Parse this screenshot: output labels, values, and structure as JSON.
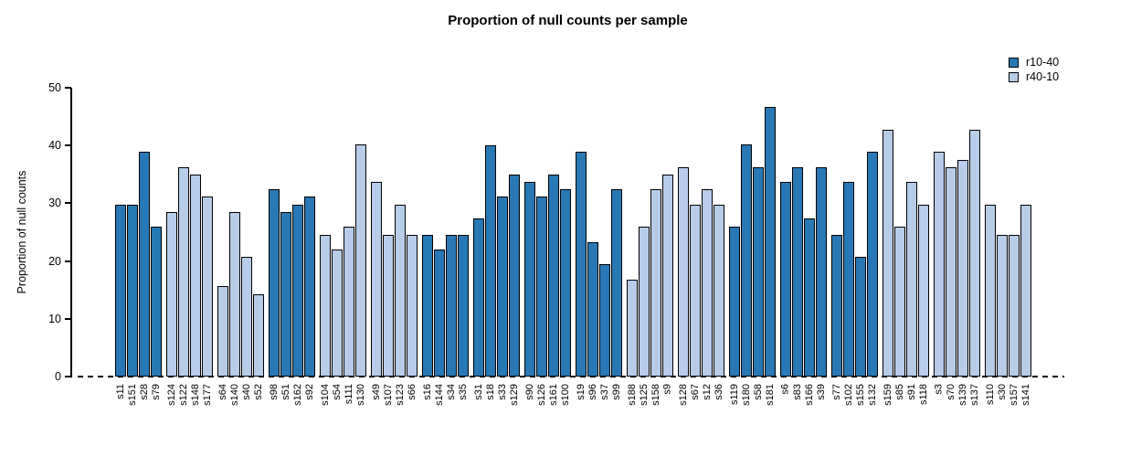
{
  "title": "Proportion of null counts per sample",
  "ylabel": "Proportion of null counts",
  "legend": [
    {
      "label": "r10-40",
      "color": "#2878b5"
    },
    {
      "label": "r40-10",
      "color": "#b7cce9"
    }
  ],
  "chart_data": {
    "type": "bar",
    "title": "Proportion of null counts per sample",
    "xlabel": "",
    "ylabel": "Proportion of null counts",
    "ylim": [
      0,
      50
    ],
    "yticks": [
      0,
      10,
      20,
      30,
      40,
      50
    ],
    "grid": false,
    "legend_position": "top-right",
    "group_size": 4,
    "series_colors": {
      "r10-40": "#2878b5",
      "r40-10": "#b7cce9"
    },
    "zero_line_style": "dashed",
    "bars": [
      {
        "label": "s11",
        "value": 29.8,
        "series": "r10-40"
      },
      {
        "label": "s151",
        "value": 29.8,
        "series": "r10-40"
      },
      {
        "label": "s28",
        "value": 38.9,
        "series": "r10-40"
      },
      {
        "label": "s79",
        "value": 26.0,
        "series": "r10-40"
      },
      {
        "label": "s124",
        "value": 28.5,
        "series": "r40-10"
      },
      {
        "label": "s122",
        "value": 36.3,
        "series": "r40-10"
      },
      {
        "label": "s148",
        "value": 34.9,
        "series": "r40-10"
      },
      {
        "label": "s177",
        "value": 31.2,
        "series": "r40-10"
      },
      {
        "label": "s64",
        "value": 15.6,
        "series": "r40-10"
      },
      {
        "label": "s140",
        "value": 28.5,
        "series": "r40-10"
      },
      {
        "label": "s40",
        "value": 20.8,
        "series": "r40-10"
      },
      {
        "label": "s52",
        "value": 14.3,
        "series": "r40-10"
      },
      {
        "label": "s98",
        "value": 32.4,
        "series": "r10-40"
      },
      {
        "label": "s51",
        "value": 28.5,
        "series": "r10-40"
      },
      {
        "label": "s162",
        "value": 29.8,
        "series": "r10-40"
      },
      {
        "label": "s92",
        "value": 31.2,
        "series": "r10-40"
      },
      {
        "label": "s104",
        "value": 24.5,
        "series": "r40-10"
      },
      {
        "label": "s54",
        "value": 22.0,
        "series": "r40-10"
      },
      {
        "label": "s111",
        "value": 26.0,
        "series": "r40-10"
      },
      {
        "label": "s130",
        "value": 40.2,
        "series": "r40-10"
      },
      {
        "label": "s49",
        "value": 33.7,
        "series": "r40-10"
      },
      {
        "label": "s107",
        "value": 24.5,
        "series": "r40-10"
      },
      {
        "label": "s123",
        "value": 29.8,
        "series": "r40-10"
      },
      {
        "label": "s66",
        "value": 24.5,
        "series": "r40-10"
      },
      {
        "label": "s16",
        "value": 24.5,
        "series": "r10-40"
      },
      {
        "label": "s144",
        "value": 22.0,
        "series": "r10-40"
      },
      {
        "label": "s34",
        "value": 24.5,
        "series": "r10-40"
      },
      {
        "label": "s35",
        "value": 24.5,
        "series": "r10-40"
      },
      {
        "label": "s31",
        "value": 27.3,
        "series": "r10-40"
      },
      {
        "label": "s18",
        "value": 40.1,
        "series": "r10-40"
      },
      {
        "label": "s33",
        "value": 31.2,
        "series": "r10-40"
      },
      {
        "label": "s129",
        "value": 34.9,
        "series": "r10-40"
      },
      {
        "label": "s90",
        "value": 33.7,
        "series": "r10-40"
      },
      {
        "label": "s126",
        "value": 31.2,
        "series": "r10-40"
      },
      {
        "label": "s161",
        "value": 34.9,
        "series": "r10-40"
      },
      {
        "label": "s100",
        "value": 32.4,
        "series": "r10-40"
      },
      {
        "label": "s19",
        "value": 38.9,
        "series": "r10-40"
      },
      {
        "label": "s96",
        "value": 23.3,
        "series": "r10-40"
      },
      {
        "label": "s37",
        "value": 19.5,
        "series": "r10-40"
      },
      {
        "label": "s99",
        "value": 32.4,
        "series": "r10-40"
      },
      {
        "label": "s188",
        "value": 16.8,
        "series": "r40-10"
      },
      {
        "label": "s125",
        "value": 26.0,
        "series": "r40-10"
      },
      {
        "label": "s158",
        "value": 32.4,
        "series": "r40-10"
      },
      {
        "label": "s9",
        "value": 34.9,
        "series": "r40-10"
      },
      {
        "label": "s128",
        "value": 36.3,
        "series": "r40-10"
      },
      {
        "label": "s67",
        "value": 29.8,
        "series": "r40-10"
      },
      {
        "label": "s12",
        "value": 32.4,
        "series": "r40-10"
      },
      {
        "label": "s36",
        "value": 29.8,
        "series": "r40-10"
      },
      {
        "label": "s119",
        "value": 26.0,
        "series": "r10-40"
      },
      {
        "label": "s180",
        "value": 40.2,
        "series": "r10-40"
      },
      {
        "label": "s58",
        "value": 36.3,
        "series": "r10-40"
      },
      {
        "label": "s181",
        "value": 46.7,
        "series": "r10-40"
      },
      {
        "label": "s6",
        "value": 33.7,
        "series": "r10-40"
      },
      {
        "label": "s83",
        "value": 36.3,
        "series": "r10-40"
      },
      {
        "label": "s166",
        "value": 27.3,
        "series": "r10-40"
      },
      {
        "label": "s39",
        "value": 36.3,
        "series": "r10-40"
      },
      {
        "label": "s77",
        "value": 24.5,
        "series": "r10-40"
      },
      {
        "label": "s102",
        "value": 33.7,
        "series": "r10-40"
      },
      {
        "label": "s155",
        "value": 20.8,
        "series": "r10-40"
      },
      {
        "label": "s132",
        "value": 38.9,
        "series": "r10-40"
      },
      {
        "label": "s159",
        "value": 42.7,
        "series": "r40-10"
      },
      {
        "label": "s85",
        "value": 26.0,
        "series": "r40-10"
      },
      {
        "label": "s91",
        "value": 33.7,
        "series": "r40-10"
      },
      {
        "label": "s118",
        "value": 29.8,
        "series": "r40-10"
      },
      {
        "label": "s3",
        "value": 38.9,
        "series": "r40-10"
      },
      {
        "label": "s70",
        "value": 36.3,
        "series": "r40-10"
      },
      {
        "label": "s139",
        "value": 37.5,
        "series": "r40-10"
      },
      {
        "label": "s137",
        "value": 42.7,
        "series": "r40-10"
      },
      {
        "label": "s110",
        "value": 29.8,
        "series": "r40-10"
      },
      {
        "label": "s30",
        "value": 24.5,
        "series": "r40-10"
      },
      {
        "label": "s157",
        "value": 24.5,
        "series": "r40-10"
      },
      {
        "label": "s141",
        "value": 29.8,
        "series": "r40-10"
      }
    ]
  }
}
